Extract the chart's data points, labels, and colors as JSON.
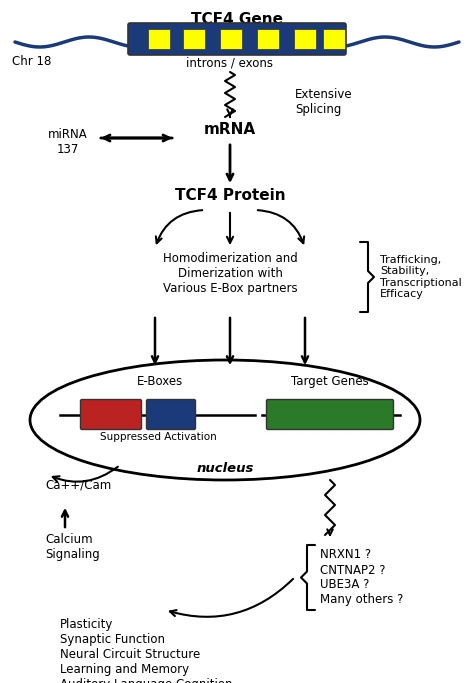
{
  "title": "TCF4 Gene",
  "bg_color": "#ffffff",
  "gene_bar_color": "#1a3a7a",
  "exon_color": "#ffff00",
  "chr_label": "Chr 18",
  "introns_exons_label": "introns / exons",
  "extensive_splicing_label": "Extensive\nSplicing",
  "mrna_label": "mRNA",
  "mirna_label": "miRNA\n137",
  "tcf4_protein_label": "TCF4 Protein",
  "homodimerization_label": "Homodimerization and\nDimerization with\nVarious E-Box partners",
  "trafficking_label": "Trafficking,\nStability,\nTranscriptional\nEfficacy",
  "ebox_label": "E-Boxes",
  "target_genes_label": "Target Genes",
  "suppressed_label": "Suppressed Activation",
  "nucleus_label": "nucleus",
  "calcium_label": "Ca++/Cam",
  "calcium_signaling_label": "Calcium\nSignaling",
  "nrxn_label": "NRXN1 ?\nCNTNAP2 ?\nUBE3A ?\nMany others ?",
  "plasticity_label": "Plasticity\nSynaptic Function\nNeural Circuit Structure\nLearning and Memory\nAuditory Language Cognition",
  "ebox_bar_color": "#bb2222",
  "ebox_bar2_color": "#1a3a7a",
  "target_gene_bar_color": "#2a7a2a",
  "arrow_color": "#111111",
  "wave_color": "#1a3a7a"
}
